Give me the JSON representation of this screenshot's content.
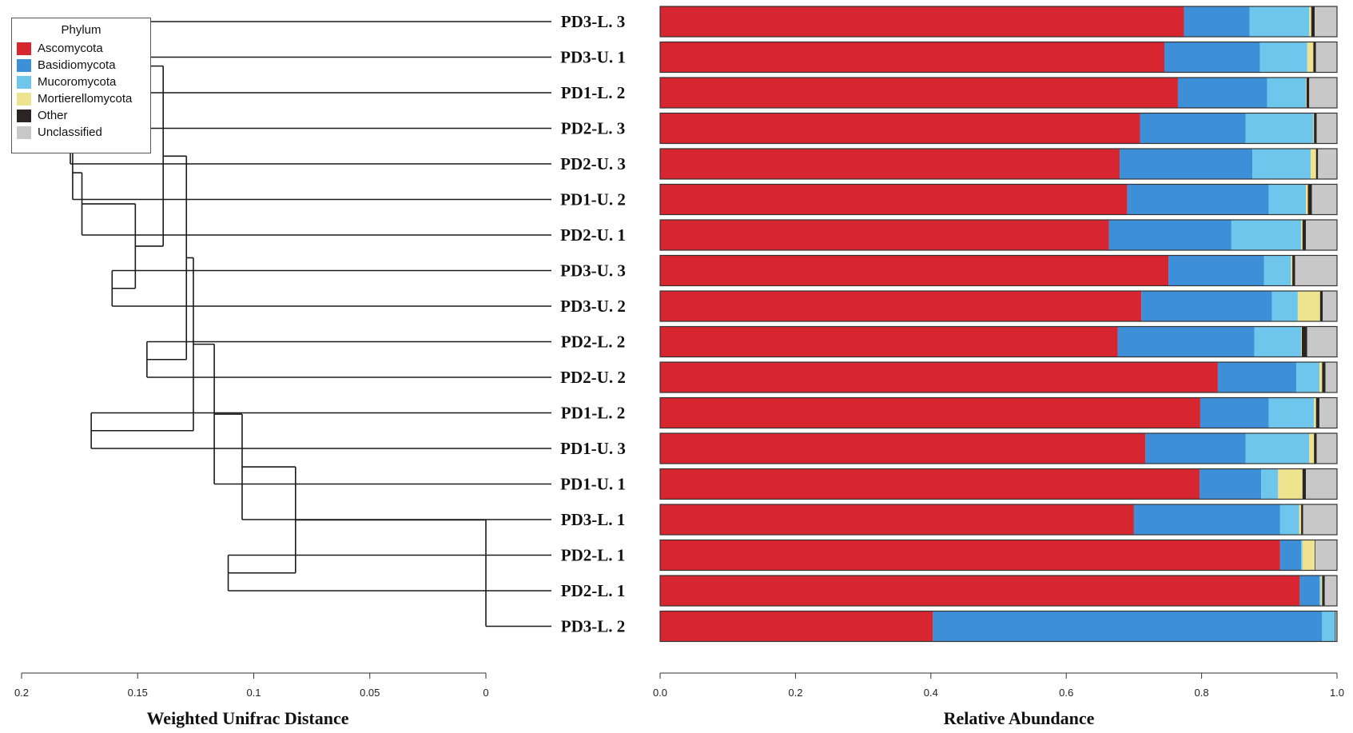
{
  "chart_data": [
    {
      "type": "dendrogram",
      "xlabel": "Weighted Unifrac Distance",
      "xlim": [
        0,
        0.2
      ],
      "ticks": [
        0,
        0.05,
        0.1,
        0.15,
        0.2
      ],
      "tick_labels": [
        "0",
        "0.05",
        "0.1",
        "0.15",
        "0.2"
      ],
      "leaves": [
        "PD3-L. 3",
        "PD3-U. 1",
        "PD1-L. 2",
        "PD2-L. 3",
        "PD2-U. 3",
        "PD1-U. 2",
        "PD2-U. 1",
        "PD3-U. 3",
        "PD3-U. 2",
        "PD2-L. 2",
        "PD2-U. 2",
        "PD1-L. 2",
        "PD1-U. 3",
        "PD1-U. 1",
        "PD3-L. 1",
        "PD2-L. 1",
        "PD2-L. 1",
        "PD3-L. 2"
      ],
      "merges": [
        {
          "a": "L0",
          "b": "L1",
          "height": 0.021
        },
        {
          "a": "N0",
          "b": "L2",
          "height": 0.04
        },
        {
          "a": "L3",
          "b": "L4",
          "height": 0.021
        },
        {
          "a": "N2",
          "b": "L5",
          "height": 0.022
        },
        {
          "a": "N3",
          "b": "L6",
          "height": 0.026
        },
        {
          "a": "L7",
          "b": "L8",
          "height": 0.039
        },
        {
          "a": "N4",
          "b": "N5",
          "height": 0.049
        },
        {
          "a": "N1",
          "b": "N6",
          "height": 0.061
        },
        {
          "a": "L9",
          "b": "L10",
          "height": 0.054
        },
        {
          "a": "N7",
          "b": "N8",
          "height": 0.071
        },
        {
          "a": "L11",
          "b": "L12",
          "height": 0.03
        },
        {
          "a": "N9",
          "b": "N10",
          "height": 0.074
        },
        {
          "a": "N11",
          "b": "L13",
          "height": 0.083
        },
        {
          "a": "N12",
          "b": "L14",
          "height": 0.095
        },
        {
          "a": "L15",
          "b": "L16",
          "height": 0.089
        },
        {
          "a": "N13",
          "b": "N14",
          "height": 0.118
        },
        {
          "a": "N15",
          "b": "L17",
          "height": 0.2
        }
      ]
    },
    {
      "type": "bar",
      "stacked": true,
      "orientation": "horizontal",
      "xlabel": "Relative Abundance",
      "xlim": [
        0,
        1
      ],
      "ticks": [
        0,
        0.2,
        0.4,
        0.6,
        0.8,
        1
      ],
      "tick_labels": [
        "0.0",
        "0.2",
        "0.4",
        "0.6",
        "0.8",
        "1.0"
      ],
      "categories": [
        "PD3-L. 3",
        "PD3-U. 1",
        "PD1-L. 2",
        "PD2-L. 3",
        "PD2-U. 3",
        "PD1-U. 2",
        "PD2-U. 1",
        "PD3-U. 3",
        "PD3-U. 2",
        "PD2-L. 2",
        "PD2-U. 2",
        "PD1-L. 2",
        "PD1-U. 3",
        "PD1-U. 1",
        "PD3-L. 1",
        "PD2-L. 1",
        "PD2-L. 1",
        "PD3-L. 2"
      ],
      "legend_title": "Phylum",
      "legend_position": "top-left",
      "series": [
        {
          "name": "Ascomycota",
          "color": "#d7262f",
          "values": [
            0.774,
            0.745,
            0.765,
            0.709,
            0.679,
            0.69,
            0.663,
            0.751,
            0.711,
            0.676,
            0.824,
            0.798,
            0.717,
            0.797,
            0.7,
            0.916,
            0.945,
            0.403
          ]
        },
        {
          "name": "Basidiomycota",
          "color": "#3d8fd8",
          "values": [
            0.097,
            0.141,
            0.132,
            0.156,
            0.196,
            0.209,
            0.181,
            0.141,
            0.193,
            0.202,
            0.116,
            0.101,
            0.148,
            0.091,
            0.216,
            0.031,
            0.029,
            0.575
          ]
        },
        {
          "name": "Mucoromycota",
          "color": "#6ec6ec",
          "values": [
            0.088,
            0.07,
            0.057,
            0.1,
            0.086,
            0.055,
            0.103,
            0.04,
            0.038,
            0.069,
            0.034,
            0.067,
            0.094,
            0.025,
            0.028,
            0.002,
            0.002,
            0.019
          ]
        },
        {
          "name": "Mortierellomycota",
          "color": "#eee38e",
          "values": [
            0.003,
            0.009,
            0.001,
            0.001,
            0.008,
            0.003,
            0.002,
            0.002,
            0.033,
            0.001,
            0.004,
            0.003,
            0.007,
            0.036,
            0.003,
            0.018,
            0.002,
            0.0
          ]
        },
        {
          "name": "Other",
          "color": "#2b2422",
          "values": [
            0.005,
            0.004,
            0.004,
            0.004,
            0.003,
            0.006,
            0.005,
            0.004,
            0.004,
            0.008,
            0.005,
            0.005,
            0.004,
            0.005,
            0.003,
            0.001,
            0.004,
            0.001
          ]
        },
        {
          "name": "Unclassified",
          "color": "#c8c8c8",
          "values": [
            0.033,
            0.031,
            0.041,
            0.03,
            0.028,
            0.037,
            0.046,
            0.062,
            0.021,
            0.044,
            0.017,
            0.026,
            0.03,
            0.046,
            0.05,
            0.032,
            0.018,
            0.002
          ]
        }
      ]
    }
  ]
}
